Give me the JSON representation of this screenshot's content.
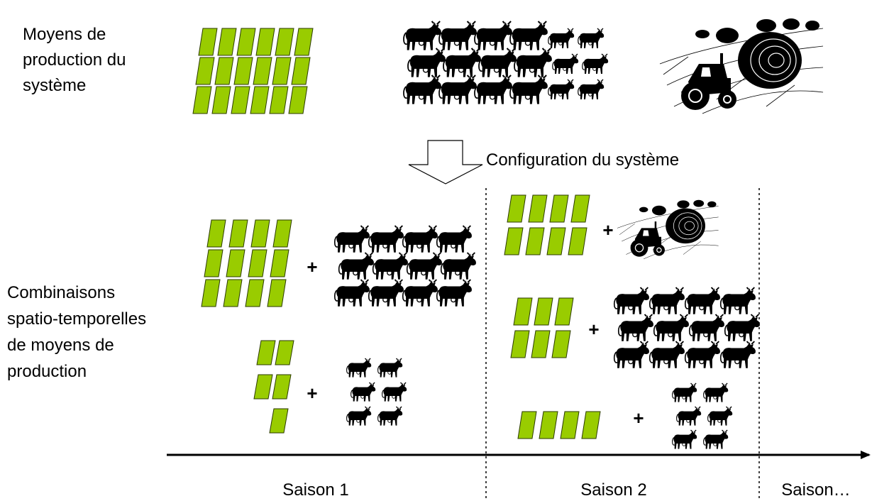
{
  "system_means": {
    "lines": [
      "Moyens de",
      "production du",
      "système"
    ]
  },
  "configuration_label": "Configuration du système",
  "combinations": {
    "lines": [
      "Combinaisons",
      "spatio-temporelles",
      "de moyens de",
      "production"
    ]
  },
  "plus_signs": [
    "+",
    "+",
    "+",
    "+",
    "+"
  ],
  "seasons": [
    "Saison 1",
    "Saison 2",
    "Saison…"
  ]
}
